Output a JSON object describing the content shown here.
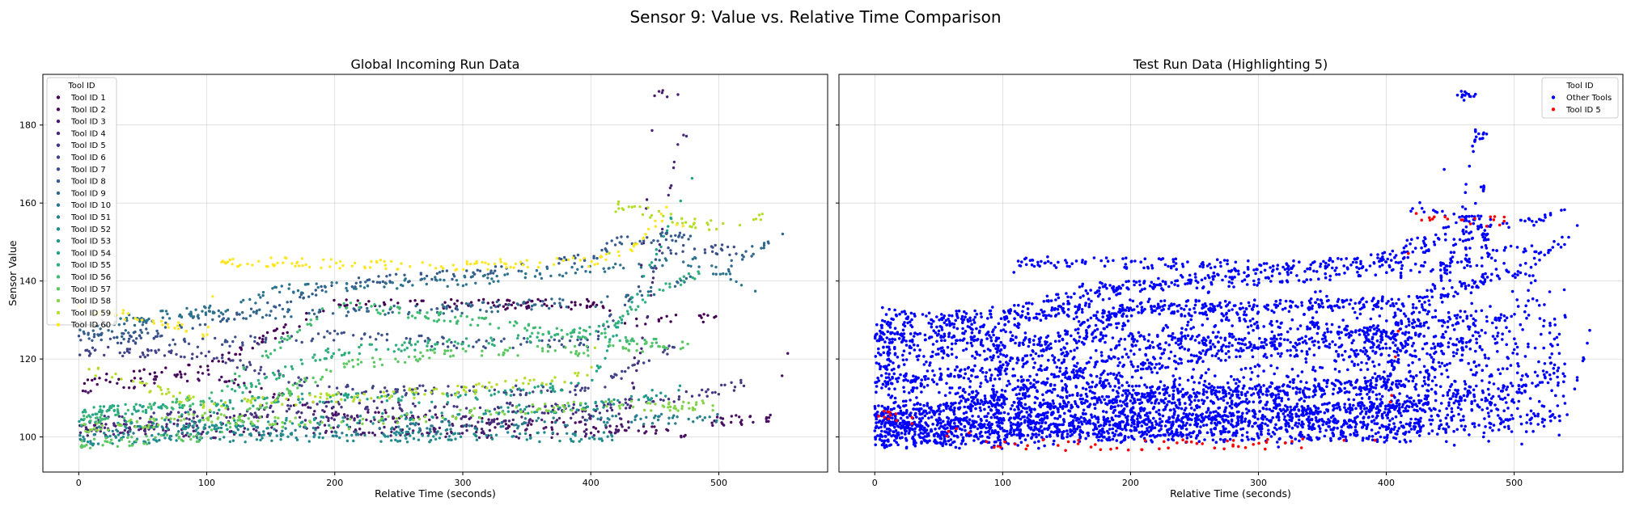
{
  "figure": {
    "suptitle": "Sensor 9: Value vs. Relative Time Comparison"
  },
  "chart_data": [
    {
      "type": "scatter",
      "title": "Global Incoming Run Data",
      "xlabel": "Relative Time (seconds)",
      "ylabel": "Sensor Value",
      "xlim": [
        -28,
        585
      ],
      "ylim": [
        91,
        193
      ],
      "xticks": [
        0,
        100,
        200,
        300,
        400,
        500
      ],
      "yticks": [
        100,
        120,
        140,
        160,
        180
      ],
      "grid": true,
      "legend": {
        "title": "Tool ID",
        "placement": "top-left"
      },
      "series": [
        {
          "name": "Tool ID 1",
          "color": "#440154",
          "trend": [
            [
              0,
              114
            ],
            [
              100,
              118
            ],
            [
              200,
              134
            ],
            [
              300,
              134
            ],
            [
              410,
              134
            ],
            [
              420,
              129
            ],
            [
              500,
              131
            ]
          ]
        },
        {
          "name": "Tool ID 2",
          "color": "#470e61",
          "trend": [
            [
              0,
              112
            ],
            [
              100,
              116
            ],
            [
              200,
              106
            ],
            [
              300,
              104
            ],
            [
              440,
              102
            ],
            [
              480,
              101
            ],
            [
              500,
              104
            ],
            [
              540,
              105
            ],
            [
              560,
              127
            ]
          ]
        },
        {
          "name": "Tool ID 3",
          "color": "#481c6e",
          "trend": [
            [
              0,
              103
            ],
            [
              100,
              101
            ],
            [
              200,
              102
            ],
            [
              300,
              101
            ],
            [
              400,
              101
            ],
            [
              430,
              103
            ],
            [
              450,
              188
            ],
            [
              470,
              187
            ]
          ]
        },
        {
          "name": "Tool ID 4",
          "color": "#482979",
          "trend": [
            [
              0,
              101
            ],
            [
              100,
              104
            ],
            [
              200,
              105
            ],
            [
              300,
              104
            ],
            [
              430,
              106
            ],
            [
              470,
              178
            ],
            [
              480,
              177
            ]
          ]
        },
        {
          "name": "Tool ID 5",
          "color": "#453581",
          "trend": [
            [
              0,
              104
            ],
            [
              100,
              106
            ],
            [
              200,
              108
            ],
            [
              300,
              108
            ],
            [
              400,
              107
            ],
            [
              500,
              112
            ],
            [
              520,
              114
            ]
          ]
        },
        {
          "name": "Tool ID 6",
          "color": "#414287",
          "trend": [
            [
              0,
              122
            ],
            [
              100,
              121
            ],
            [
              200,
              112
            ],
            [
              300,
              112
            ],
            [
              400,
              112
            ],
            [
              460,
              122
            ],
            [
              470,
              126
            ]
          ]
        },
        {
          "name": "Tool ID 7",
          "color": "#3b4f8a",
          "trend": [
            [
              0,
              126
            ],
            [
              100,
              124
            ],
            [
              200,
              126
            ],
            [
              300,
              124
            ],
            [
              400,
              124
            ],
            [
              460,
              148
            ],
            [
              520,
              148
            ]
          ]
        },
        {
          "name": "Tool ID 8",
          "color": "#355b8d",
          "trend": [
            [
              0,
              125
            ],
            [
              100,
              128
            ],
            [
              200,
              139
            ],
            [
              300,
              142
            ],
            [
              400,
              146
            ],
            [
              420,
              150
            ],
            [
              480,
              152
            ]
          ]
        },
        {
          "name": "Tool ID 9",
          "color": "#30678d",
          "trend": [
            [
              0,
              127
            ],
            [
              100,
              131
            ],
            [
              200,
              132
            ],
            [
              300,
              133
            ],
            [
              420,
              135
            ],
            [
              500,
              142
            ],
            [
              550,
              153
            ]
          ]
        },
        {
          "name": "Tool ID 10",
          "color": "#2b738e",
          "trend": [
            [
              0,
              129
            ],
            [
              120,
              133
            ],
            [
              160,
              138
            ],
            [
              300,
              140
            ],
            [
              400,
              143
            ],
            [
              480,
              145
            ],
            [
              530,
              138
            ]
          ]
        },
        {
          "name": "Tool ID 51",
          "color": "#277f8e",
          "trend": [
            [
              0,
              101
            ],
            [
              100,
              102
            ],
            [
              200,
              101
            ],
            [
              300,
              103
            ],
            [
              400,
              104
            ],
            [
              500,
              105
            ]
          ]
        },
        {
          "name": "Tool ID 52",
          "color": "#228b8d",
          "trend": [
            [
              0,
              99
            ],
            [
              100,
              100
            ],
            [
              200,
              100
            ],
            [
              300,
              100
            ],
            [
              400,
              100
            ],
            [
              420,
              100
            ]
          ]
        },
        {
          "name": "Tool ID 53",
          "color": "#1f978b",
          "trend": [
            [
              0,
              104
            ],
            [
              100,
              103
            ],
            [
              200,
              104
            ],
            [
              300,
              106
            ],
            [
              400,
              108
            ],
            [
              470,
              112
            ]
          ]
        },
        {
          "name": "Tool ID 54",
          "color": "#21a385",
          "trend": [
            [
              0,
              107
            ],
            [
              100,
              107
            ],
            [
              150,
              110
            ],
            [
              300,
              110
            ],
            [
              400,
              114
            ],
            [
              440,
              140
            ],
            [
              480,
              167
            ]
          ]
        },
        {
          "name": "Tool ID 55",
          "color": "#2eaf7c",
          "trend": [
            [
              0,
              106
            ],
            [
              100,
              109
            ],
            [
              200,
              122
            ],
            [
              300,
              124
            ],
            [
              400,
              127
            ],
            [
              420,
              130
            ],
            [
              460,
              139
            ],
            [
              490,
              142
            ]
          ]
        },
        {
          "name": "Tool ID 56",
          "color": "#40bc72",
          "trend": [
            [
              0,
              104
            ],
            [
              100,
              110
            ],
            [
              200,
              134
            ],
            [
              300,
              130
            ],
            [
              400,
              126
            ],
            [
              460,
              124
            ]
          ]
        },
        {
          "name": "Tool ID 57",
          "color": "#5bc863",
          "trend": [
            [
              0,
              98
            ],
            [
              100,
              100
            ],
            [
              200,
              118
            ],
            [
              300,
              122
            ],
            [
              400,
              122
            ],
            [
              480,
              124
            ]
          ]
        },
        {
          "name": "Tool ID 58",
          "color": "#84d44b",
          "trend": [
            [
              0,
              102
            ],
            [
              100,
              105
            ],
            [
              200,
              103
            ],
            [
              300,
              106
            ],
            [
              400,
              108
            ],
            [
              500,
              108
            ]
          ]
        },
        {
          "name": "Tool ID 59",
          "color": "#b5de2b",
          "trend": [
            [
              0,
              118
            ],
            [
              100,
              108
            ],
            [
              200,
              110
            ],
            [
              300,
              112
            ],
            [
              400,
              116
            ],
            [
              420,
              160
            ],
            [
              460,
              156
            ],
            [
              500,
              154
            ],
            [
              540,
              157
            ]
          ]
        },
        {
          "name": "Tool ID 60",
          "color": "#fde725",
          "trend": [
            [
              0,
              133
            ],
            [
              60,
              130
            ],
            [
              100,
              126
            ],
            [
              110,
              145
            ],
            [
              300,
              144
            ],
            [
              400,
              145
            ],
            [
              430,
              148
            ],
            [
              460,
              158
            ],
            [
              480,
              151
            ]
          ]
        }
      ]
    },
    {
      "type": "scatter",
      "title": "Test Run Data (Highlighting 5)",
      "xlabel": "Relative Time (seconds)",
      "ylabel": "",
      "xlim": [
        -28,
        585
      ],
      "ylim": [
        91,
        193
      ],
      "xticks": [
        0,
        100,
        200,
        300,
        400,
        500
      ],
      "yticks": [
        100,
        120,
        140,
        160,
        180
      ],
      "grid": true,
      "legend": {
        "title": "Tool ID",
        "placement": "top-right"
      },
      "series": [
        {
          "name": "Other Tools",
          "color": "#0000ff",
          "band": true
        },
        {
          "name": "Tool ID 5",
          "color": "#ff0000",
          "trend": [
            [
              0,
              106
            ],
            [
              100,
              98
            ],
            [
              200,
              98
            ],
            [
              300,
              98
            ],
            [
              400,
              100
            ],
            [
              420,
              156
            ],
            [
              460,
              156
            ],
            [
              500,
              155
            ]
          ]
        }
      ]
    }
  ]
}
